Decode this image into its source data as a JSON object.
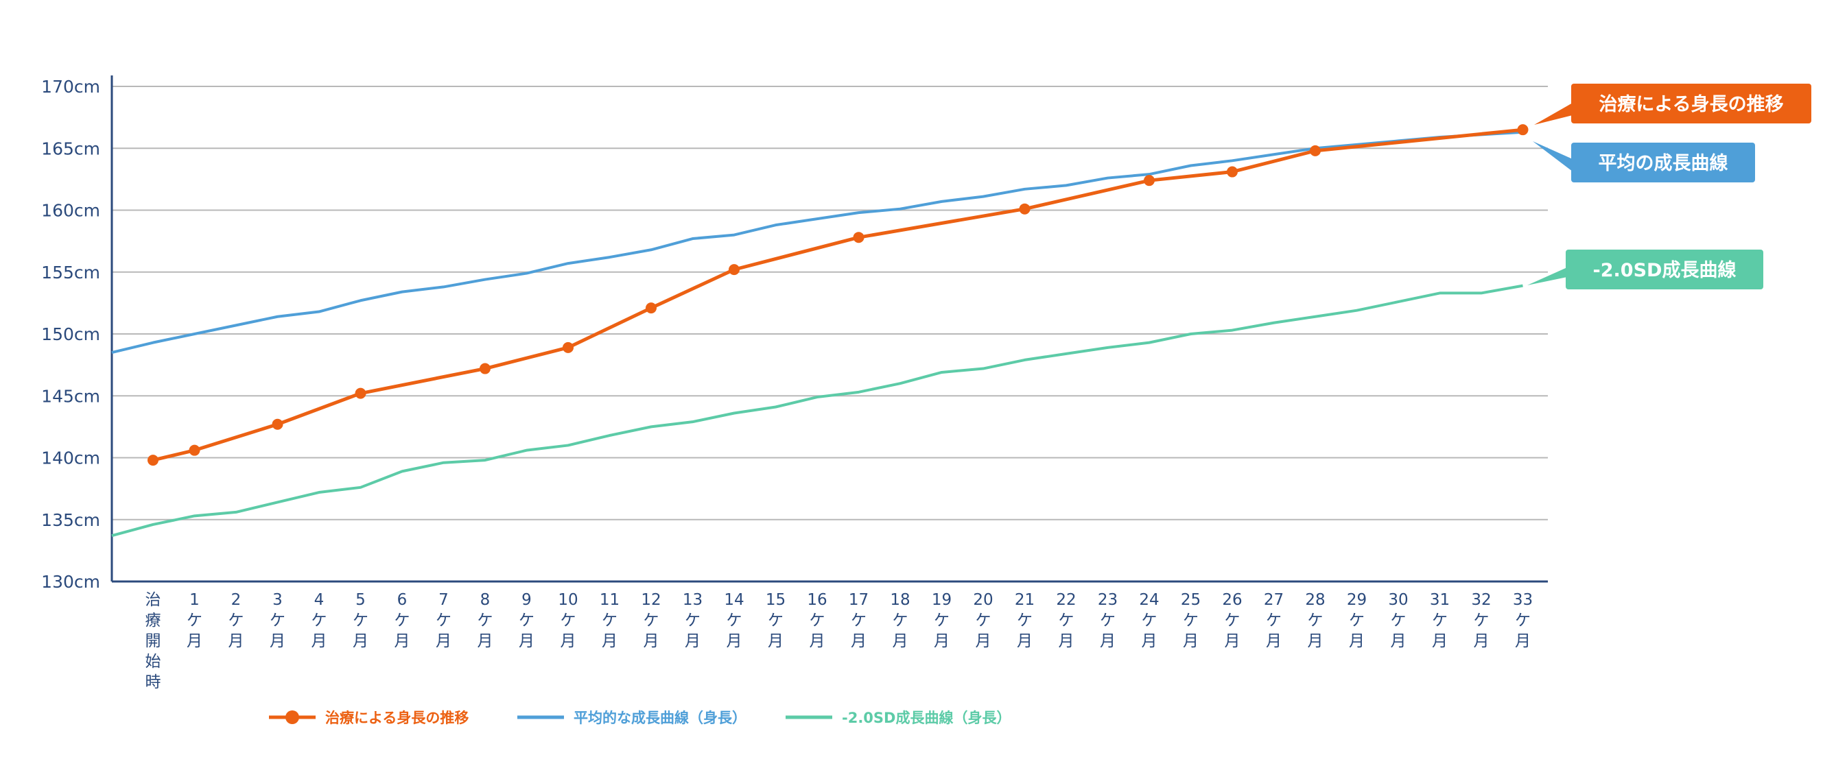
{
  "chart_data": {
    "type": "line",
    "ylim": [
      130,
      170
    ],
    "y_ticks": [
      "130cm",
      "135cm",
      "140cm",
      "145cm",
      "150cm",
      "155cm",
      "160cm",
      "165cm",
      "170cm"
    ],
    "y_tick_values": [
      130,
      135,
      140,
      145,
      150,
      155,
      160,
      165,
      170
    ],
    "categories": [
      "治療開始時",
      "1ケ月",
      "2ケ月",
      "3ケ月",
      "4ケ月",
      "5ケ月",
      "6ケ月",
      "7ケ月",
      "8ケ月",
      "9ケ月",
      "10ケ月",
      "11ケ月",
      "12ケ月",
      "13ケ月",
      "14ケ月",
      "15ケ月",
      "16ケ月",
      "17ケ月",
      "18ケ月",
      "19ケ月",
      "20ケ月",
      "21ケ月",
      "22ケ月",
      "23ケ月",
      "24ケ月",
      "25ケ月",
      "26ケ月",
      "27ケ月",
      "28ケ月",
      "29ケ月",
      "30ケ月",
      "31ケ月",
      "32ケ月",
      "33ケ月"
    ],
    "grid": true,
    "legend_position": "bottom",
    "series": [
      {
        "name": "治療による身長の推移",
        "color": "#ec6113",
        "markers": true,
        "points": [
          [
            0,
            139.8
          ],
          [
            1,
            140.6
          ],
          [
            3,
            142.7
          ],
          [
            5,
            145.2
          ],
          [
            8,
            147.2
          ],
          [
            10,
            148.9
          ],
          [
            12,
            152.1
          ],
          [
            14,
            155.2
          ],
          [
            17,
            157.8
          ],
          [
            21,
            160.1
          ],
          [
            24,
            162.4
          ],
          [
            26,
            163.1
          ],
          [
            28,
            164.8
          ],
          [
            33,
            166.5
          ]
        ]
      },
      {
        "name": "平均的な成長曲線（身長）",
        "color": "#4f9fd8",
        "markers": false,
        "start_value": 148.5,
        "values": [
          149.3,
          150.0,
          150.7,
          151.4,
          151.8,
          152.7,
          153.4,
          153.8,
          154.4,
          154.9,
          155.7,
          156.2,
          156.8,
          157.7,
          158.0,
          158.8,
          159.3,
          159.8,
          160.1,
          160.7,
          161.1,
          161.7,
          162.0,
          162.6,
          162.9,
          163.6,
          164.0,
          164.5,
          165.0,
          165.3,
          165.6,
          165.9,
          166.1,
          166.3
        ]
      },
      {
        "name": "-2.0SD成長曲線（身長）",
        "color": "#5ccba7",
        "markers": false,
        "start_value": 133.7,
        "values": [
          134.6,
          135.3,
          135.6,
          136.4,
          137.2,
          137.6,
          138.9,
          139.6,
          139.8,
          140.6,
          141.0,
          141.8,
          142.5,
          142.9,
          143.6,
          144.1,
          144.9,
          145.3,
          146.0,
          146.9,
          147.2,
          147.9,
          148.4,
          148.9,
          149.3,
          150.0,
          150.3,
          150.9,
          151.4,
          151.9,
          152.6,
          153.3,
          153.3,
          153.9
        ]
      }
    ],
    "callouts": [
      {
        "text": "治療による身長の推移",
        "color": "#ec6113",
        "value": 166.5
      },
      {
        "text": "平均の成長曲線",
        "color": "#4f9fd8",
        "value": 166.3
      },
      {
        "text": "-2.0SD成長曲線",
        "color": "#5ccba7",
        "value": 153.9
      }
    ]
  }
}
